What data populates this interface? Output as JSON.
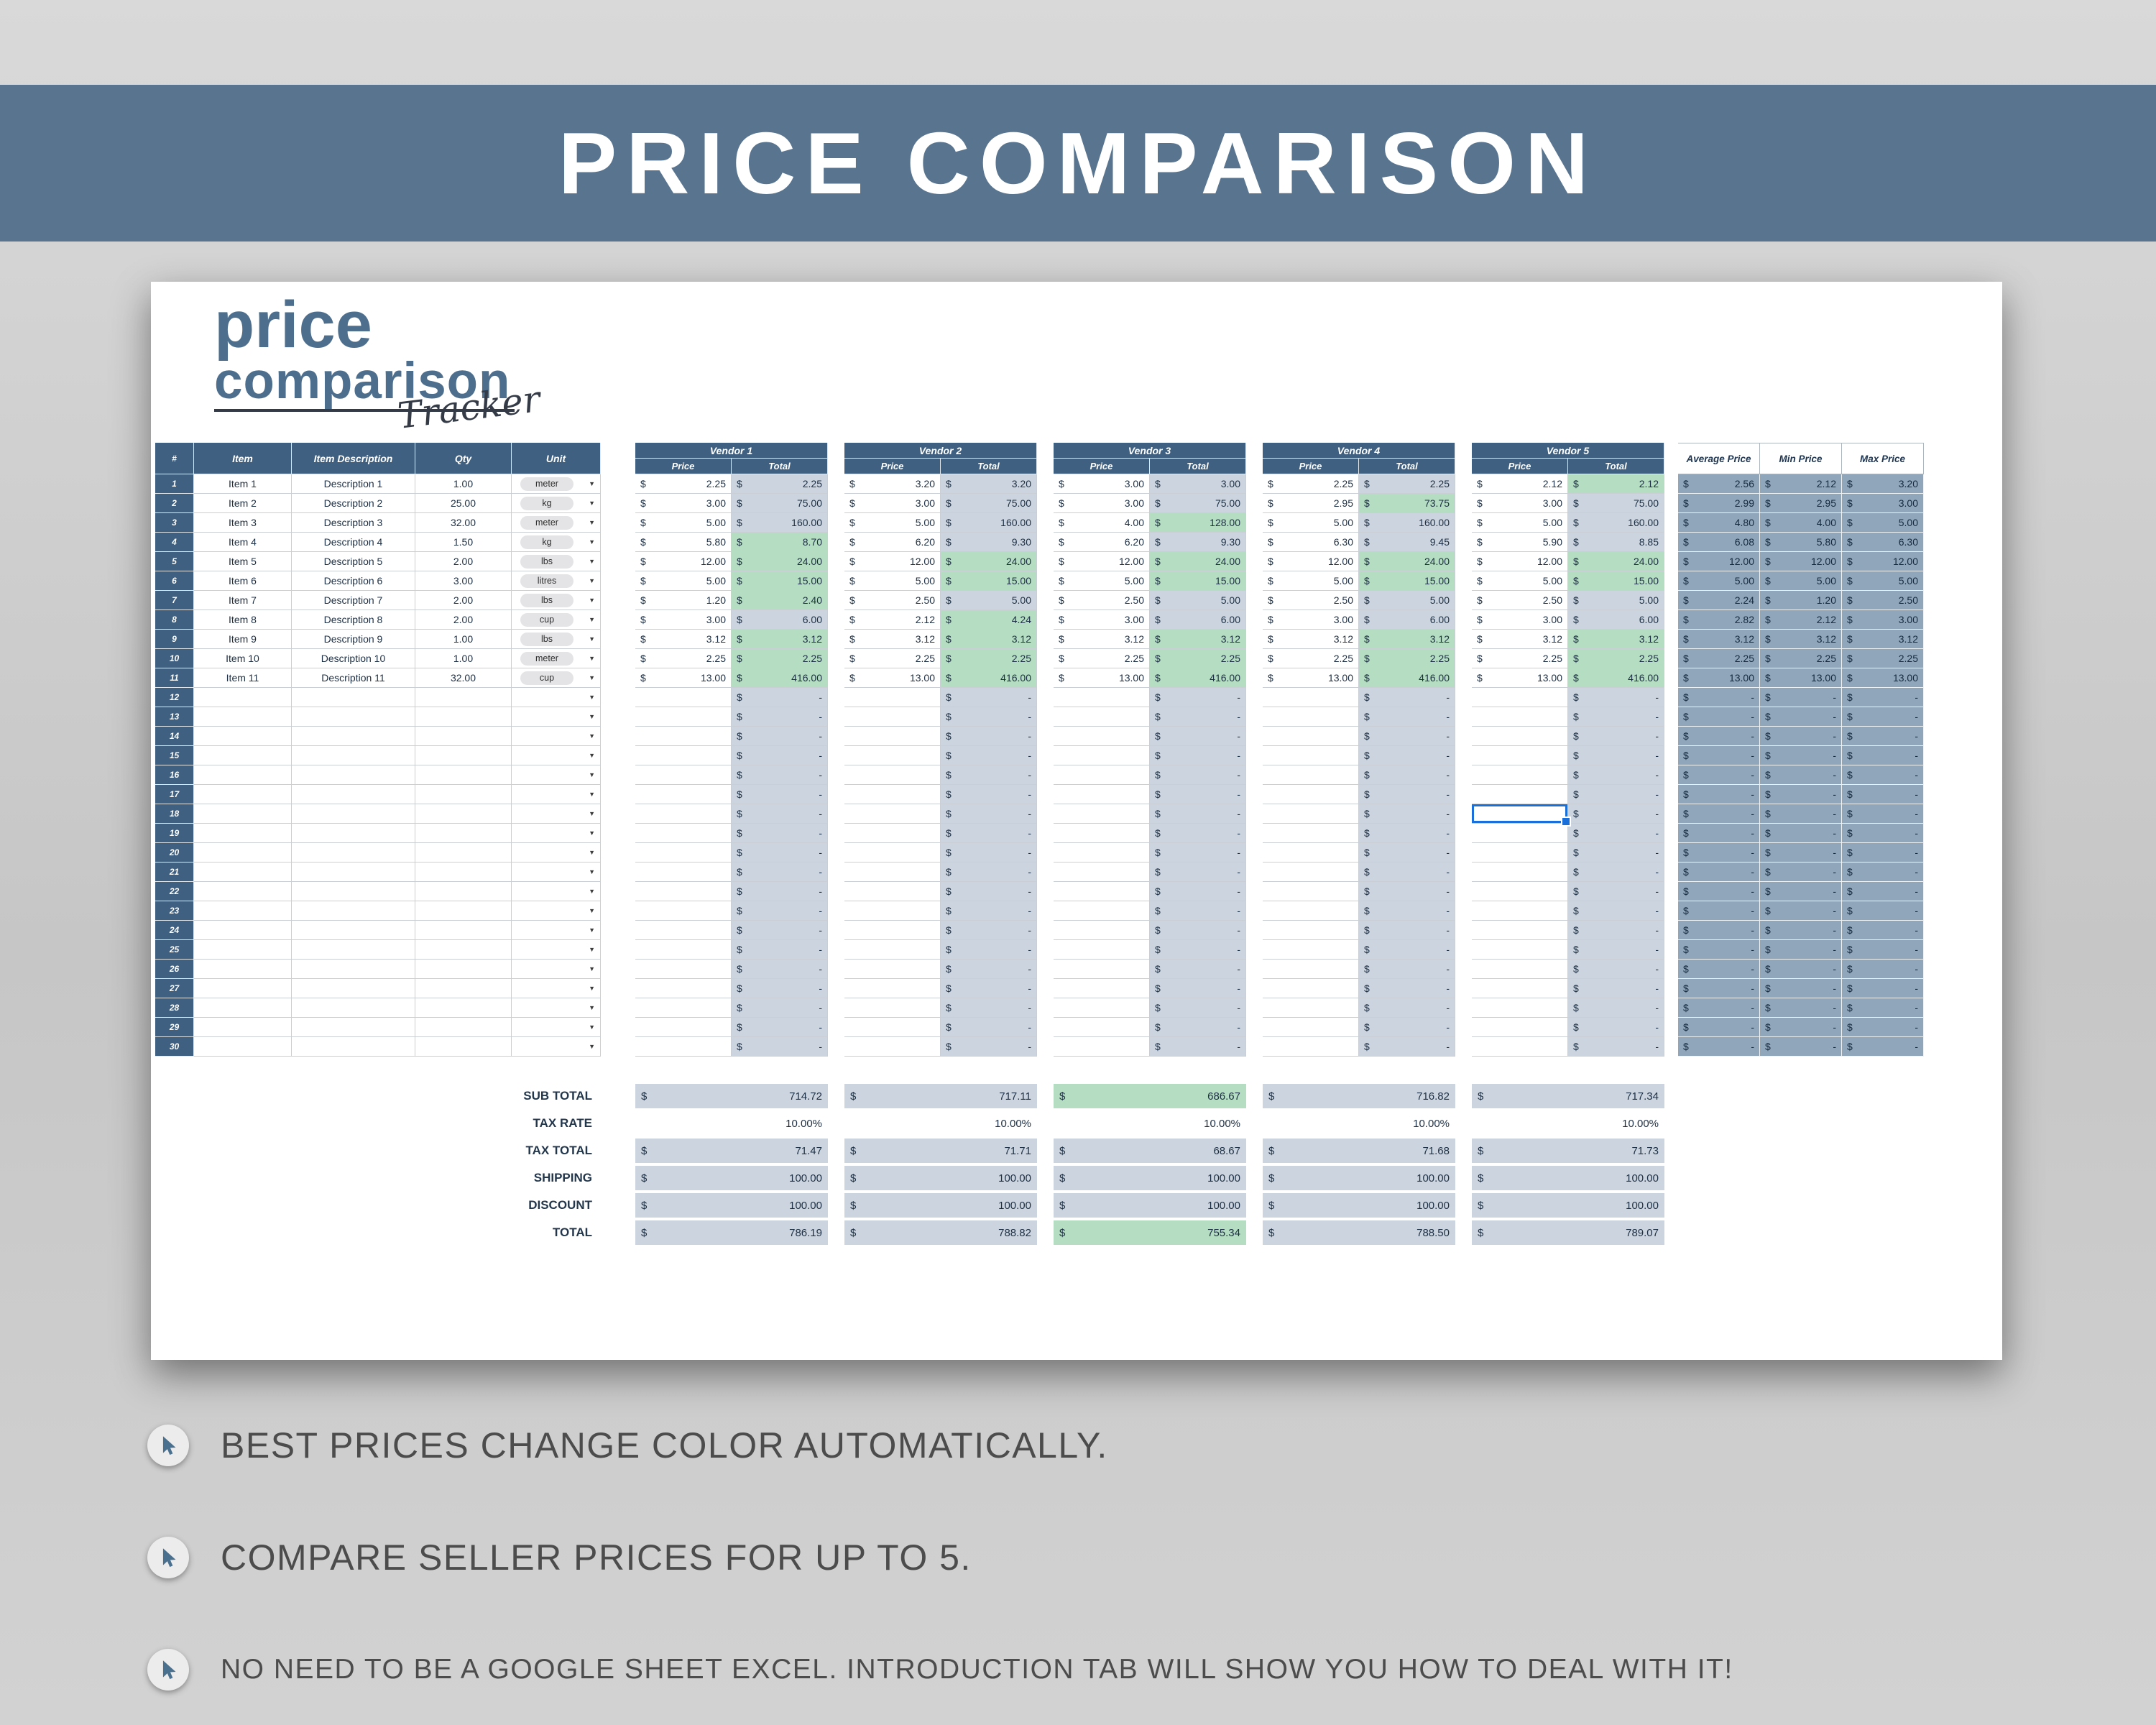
{
  "banner": {
    "title": "PRICE COMPARISON"
  },
  "logo": {
    "line1": "price",
    "line2": "comparison",
    "script": "Tracker"
  },
  "colors": {
    "banner": "#58748f",
    "header": "#3f6080",
    "best_green": "#b4ddc2",
    "total_shade": "#ccd5df",
    "stats_bg": "#90a7bb",
    "accent_blue": "#1a6fd8"
  },
  "sheet": {
    "currency": "$",
    "row_count": 30,
    "main_headers": [
      "#",
      "Item",
      "Item Description",
      "Qty",
      "Unit"
    ],
    "price_label": "Price",
    "total_label": "Total",
    "items": [
      {
        "item": "Item 1",
        "desc": "Description 1",
        "qty": "1.00",
        "unit": "meter"
      },
      {
        "item": "Item 2",
        "desc": "Description 2",
        "qty": "25.00",
        "unit": "kg"
      },
      {
        "item": "Item 3",
        "desc": "Description 3",
        "qty": "32.00",
        "unit": "meter"
      },
      {
        "item": "Item 4",
        "desc": "Description 4",
        "qty": "1.50",
        "unit": "kg"
      },
      {
        "item": "Item 5",
        "desc": "Description 5",
        "qty": "2.00",
        "unit": "lbs"
      },
      {
        "item": "Item 6",
        "desc": "Description 6",
        "qty": "3.00",
        "unit": "litres"
      },
      {
        "item": "Item 7",
        "desc": "Description 7",
        "qty": "2.00",
        "unit": "lbs"
      },
      {
        "item": "Item 8",
        "desc": "Description 8",
        "qty": "2.00",
        "unit": "cup"
      },
      {
        "item": "Item 9",
        "desc": "Description 9",
        "qty": "1.00",
        "unit": "lbs"
      },
      {
        "item": "Item 10",
        "desc": "Description 10",
        "qty": "1.00",
        "unit": "meter"
      },
      {
        "item": "Item 11",
        "desc": "Description 11",
        "qty": "32.00",
        "unit": "cup"
      }
    ],
    "vendors": [
      {
        "name": "Vendor 1",
        "rows": [
          [
            "2.25",
            "2.25",
            0
          ],
          [
            "3.00",
            "75.00",
            0
          ],
          [
            "5.00",
            "160.00",
            0
          ],
          [
            "5.80",
            "8.70",
            1
          ],
          [
            "12.00",
            "24.00",
            1
          ],
          [
            "5.00",
            "15.00",
            1
          ],
          [
            "1.20",
            "2.40",
            1
          ],
          [
            "3.00",
            "6.00",
            0
          ],
          [
            "3.12",
            "3.12",
            1
          ],
          [
            "2.25",
            "2.25",
            1
          ],
          [
            "13.00",
            "416.00",
            1
          ]
        ]
      },
      {
        "name": "Vendor 2",
        "rows": [
          [
            "3.20",
            "3.20",
            0
          ],
          [
            "3.00",
            "75.00",
            0
          ],
          [
            "5.00",
            "160.00",
            0
          ],
          [
            "6.20",
            "9.30",
            0
          ],
          [
            "12.00",
            "24.00",
            1
          ],
          [
            "5.00",
            "15.00",
            1
          ],
          [
            "2.50",
            "5.00",
            0
          ],
          [
            "2.12",
            "4.24",
            1
          ],
          [
            "3.12",
            "3.12",
            1
          ],
          [
            "2.25",
            "2.25",
            1
          ],
          [
            "13.00",
            "416.00",
            1
          ]
        ]
      },
      {
        "name": "Vendor 3",
        "rows": [
          [
            "3.00",
            "3.00",
            0
          ],
          [
            "3.00",
            "75.00",
            0
          ],
          [
            "4.00",
            "128.00",
            1
          ],
          [
            "6.20",
            "9.30",
            0
          ],
          [
            "12.00",
            "24.00",
            1
          ],
          [
            "5.00",
            "15.00",
            1
          ],
          [
            "2.50",
            "5.00",
            0
          ],
          [
            "3.00",
            "6.00",
            0
          ],
          [
            "3.12",
            "3.12",
            1
          ],
          [
            "2.25",
            "2.25",
            1
          ],
          [
            "13.00",
            "416.00",
            1
          ]
        ]
      },
      {
        "name": "Vendor 4",
        "rows": [
          [
            "2.25",
            "2.25",
            0
          ],
          [
            "2.95",
            "73.75",
            1
          ],
          [
            "5.00",
            "160.00",
            0
          ],
          [
            "6.30",
            "9.45",
            0
          ],
          [
            "12.00",
            "24.00",
            1
          ],
          [
            "5.00",
            "15.00",
            1
          ],
          [
            "2.50",
            "5.00",
            0
          ],
          [
            "3.00",
            "6.00",
            0
          ],
          [
            "3.12",
            "3.12",
            1
          ],
          [
            "2.25",
            "2.25",
            1
          ],
          [
            "13.00",
            "416.00",
            1
          ]
        ]
      },
      {
        "name": "Vendor 5",
        "rows": [
          [
            "2.12",
            "2.12",
            1
          ],
          [
            "3.00",
            "75.00",
            0
          ],
          [
            "5.00",
            "160.00",
            0
          ],
          [
            "5.90",
            "8.85",
            0
          ],
          [
            "12.00",
            "24.00",
            1
          ],
          [
            "5.00",
            "15.00",
            1
          ],
          [
            "2.50",
            "5.00",
            0
          ],
          [
            "3.00",
            "6.00",
            0
          ],
          [
            "3.12",
            "3.12",
            1
          ],
          [
            "2.25",
            "2.25",
            1
          ],
          [
            "13.00",
            "416.00",
            1
          ]
        ]
      }
    ],
    "stats": {
      "headers": [
        "Average Price",
        "Min Price",
        "Max Price"
      ],
      "avg": [
        "2.56",
        "2.99",
        "4.80",
        "6.08",
        "12.00",
        "5.00",
        "2.24",
        "2.82",
        "3.12",
        "2.25",
        "13.00"
      ],
      "min": [
        "2.12",
        "2.95",
        "4.00",
        "5.80",
        "12.00",
        "5.00",
        "1.20",
        "2.12",
        "3.12",
        "2.25",
        "13.00"
      ],
      "max": [
        "3.20",
        "3.00",
        "5.00",
        "6.30",
        "12.00",
        "5.00",
        "2.50",
        "3.00",
        "3.12",
        "2.25",
        "13.00"
      ]
    },
    "selection": {
      "vendor": 5,
      "row": 18
    },
    "totals": {
      "labels": [
        "SUB TOTAL",
        "TAX RATE",
        "TAX TOTAL",
        "SHIPPING",
        "DISCOUNT",
        "TOTAL"
      ],
      "vendors": [
        [
          "714.72",
          "10.00%",
          "71.47",
          "100.00",
          "100.00",
          "786.19"
        ],
        [
          "717.11",
          "10.00%",
          "71.71",
          "100.00",
          "100.00",
          "788.82"
        ],
        [
          "686.67",
          "10.00%",
          "68.67",
          "100.00",
          "100.00",
          "755.34"
        ],
        [
          "716.82",
          "10.00%",
          "71.68",
          "100.00",
          "100.00",
          "788.50"
        ],
        [
          "717.34",
          "10.00%",
          "71.73",
          "100.00",
          "100.00",
          "789.07"
        ]
      ],
      "best": [
        [
          0,
          2
        ],
        [
          5,
          2
        ]
      ]
    }
  },
  "bullets": [
    "BEST PRICES CHANGE COLOR AUTOMATICALLY.",
    "COMPARE SELLER PRICES FOR UP TO 5.",
    "NO NEED TO BE A GOOGLE SHEET EXCEL. INTRODUCTION TAB WILL SHOW YOU HOW TO DEAL WITH IT!"
  ]
}
